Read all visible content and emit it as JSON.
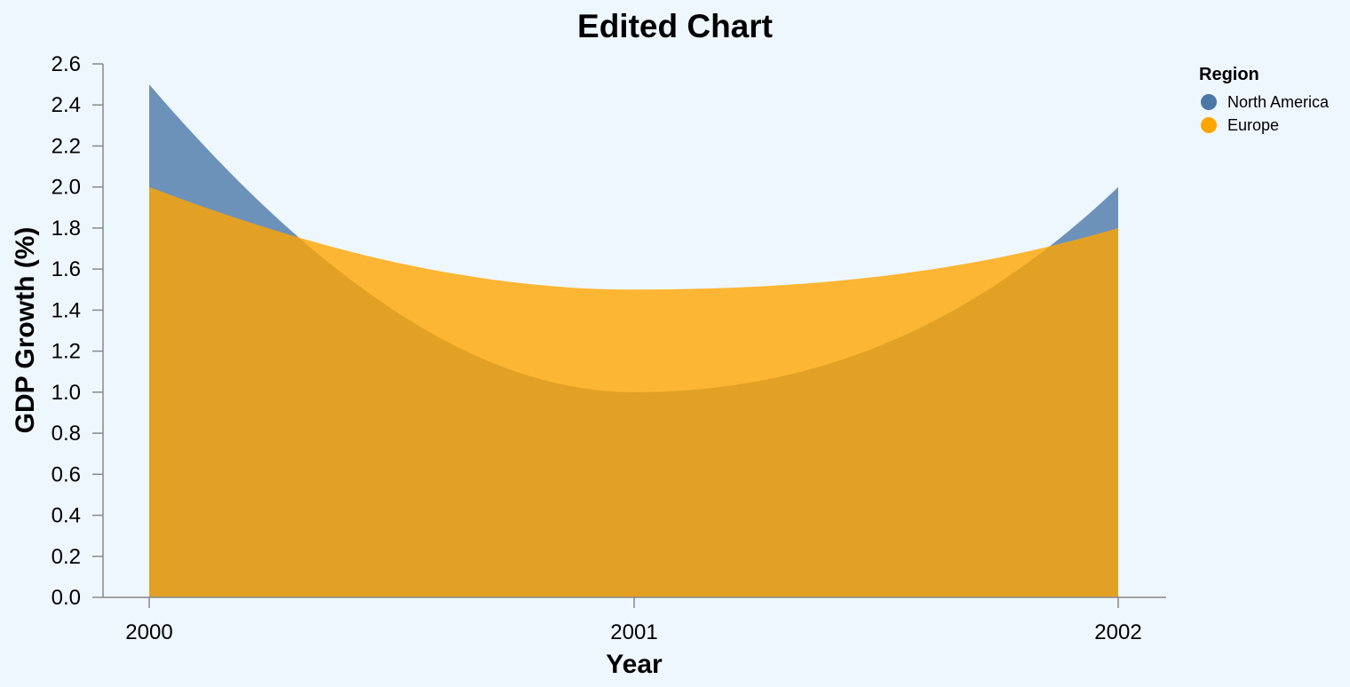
{
  "chart_data": {
    "type": "area",
    "title": "Edited Chart",
    "xlabel": "Year",
    "ylabel": "GDP Growth (%)",
    "x": [
      "2000",
      "2001",
      "2002"
    ],
    "ylim": [
      0,
      2.6
    ],
    "yticks": [
      "0.0",
      "0.2",
      "0.4",
      "0.6",
      "0.8",
      "1.0",
      "1.2",
      "1.4",
      "1.6",
      "1.8",
      "2.0",
      "2.2",
      "2.4",
      "2.6"
    ],
    "grid": false,
    "interpolation": "monotone",
    "stacked": false,
    "legend": {
      "title": "Region",
      "placement": "top-right"
    },
    "series": [
      {
        "name": "North America",
        "values": [
          2.5,
          1.0,
          2.0
        ],
        "color": "#4c78a8"
      },
      {
        "name": "Europe",
        "values": [
          2.0,
          1.5,
          1.8
        ],
        "color": "#ffa500"
      }
    ]
  }
}
